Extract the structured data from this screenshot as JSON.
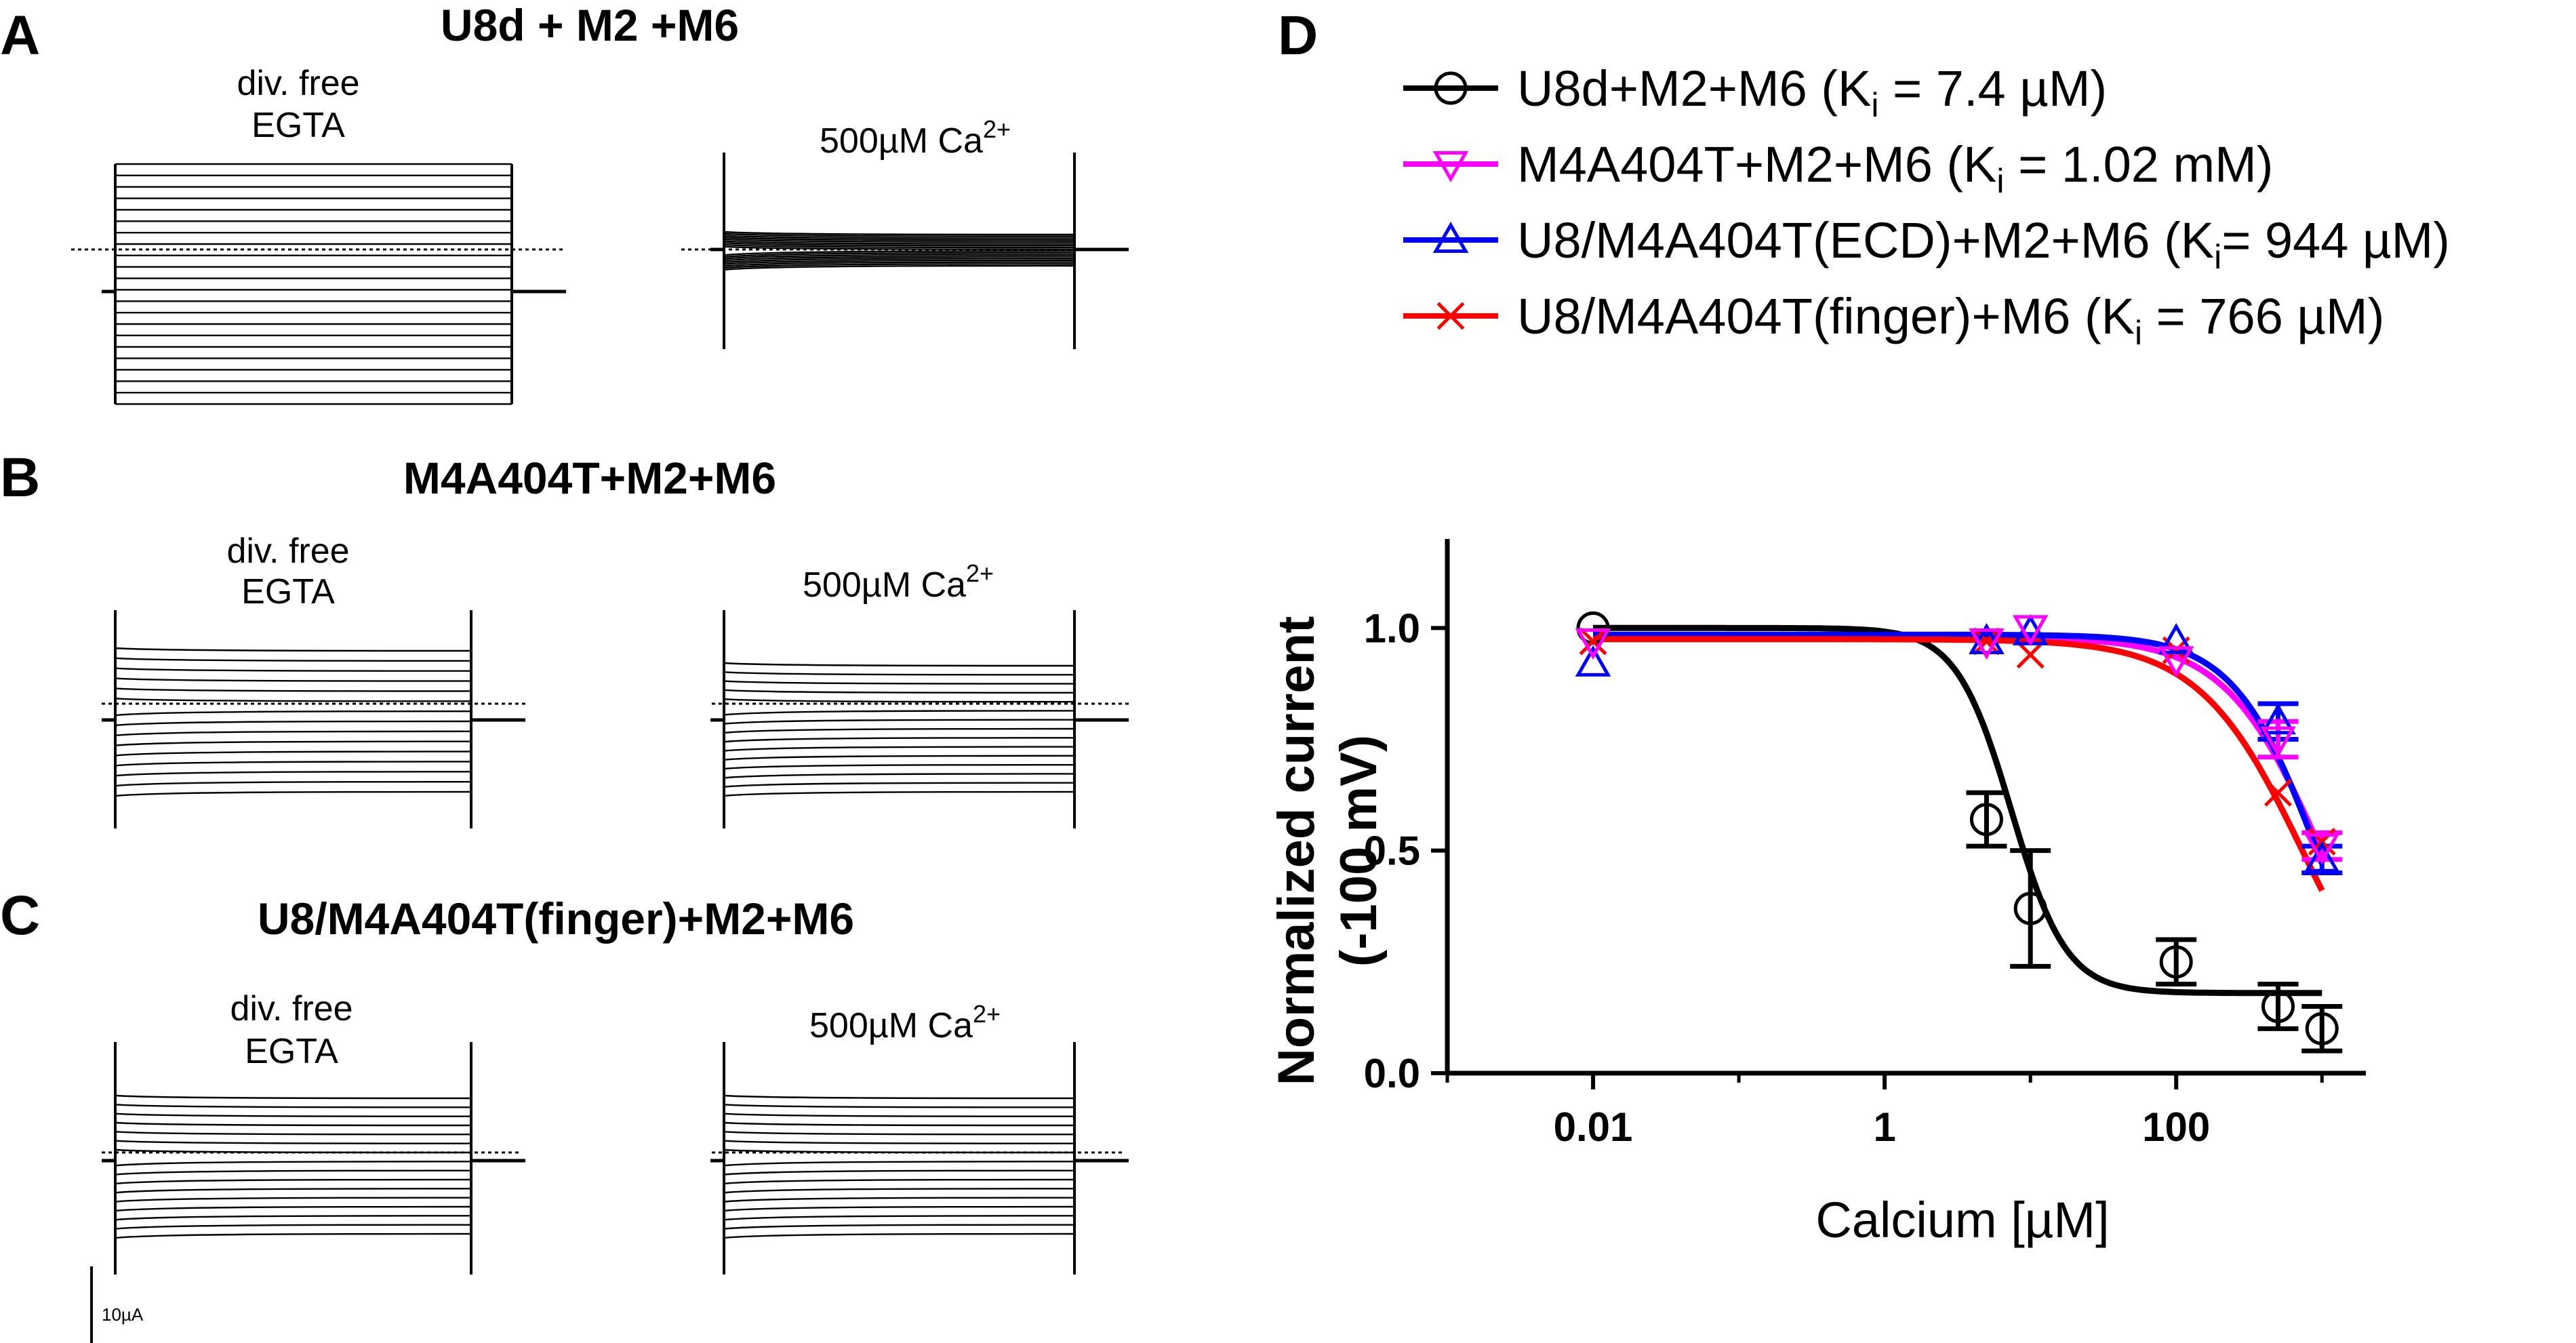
{
  "panels": {
    "A": {
      "letter": "A",
      "title": "U8d + M2 +M6"
    },
    "B": {
      "letter": "B",
      "title": "M4A404T+M2+M6"
    },
    "C": {
      "letter": "C",
      "title": "U8/M4A404T(finger)+M2+M6"
    },
    "D": {
      "letter": "D"
    }
  },
  "conditions": {
    "free_line1": "div. free",
    "free_line2": "EGTA",
    "ca_prefix": "500µM Ca",
    "ca_sup": "2+"
  },
  "scale_bar": {
    "label": "10µA"
  },
  "chart_data": {
    "type": "scatter",
    "xscale": "log",
    "xlabel_prefix": "Calcium [",
    "xlabel_unit": "µM",
    "xlabel_suffix": "]",
    "ylabel_line1": "Normalized current",
    "ylabel_line2": "(-100 mV)",
    "xlim": [
      0.001,
      2000
    ],
    "ylim": [
      0,
      1.2
    ],
    "xticks": [
      {
        "value": 0.01,
        "label": "0.01"
      },
      {
        "value": 1,
        "label": "1"
      },
      {
        "value": 100,
        "label": "100"
      }
    ],
    "yticks": [
      {
        "value": 0.0,
        "label": "0.0"
      },
      {
        "value": 0.5,
        "label": "0.5"
      },
      {
        "value": 1.0,
        "label": "1.0"
      }
    ],
    "legend_position": "top",
    "series": [
      {
        "name": "U8d+M2+M6",
        "ki_value": "7.4 µM",
        "ki_spacing": "spaced",
        "color": "#000000",
        "marker": "circle",
        "points": [
          {
            "x": 0.01,
            "y": 1.0,
            "err": 0
          },
          {
            "x": 5,
            "y": 0.57,
            "err": 0.06
          },
          {
            "x": 10,
            "y": 0.37,
            "err": 0.13
          },
          {
            "x": 100,
            "y": 0.25,
            "err": 0.05
          },
          {
            "x": 500,
            "y": 0.15,
            "err": 0.05
          },
          {
            "x": 1000,
            "y": 0.1,
            "err": 0.05
          }
        ],
        "fit": {
          "top": 1.0,
          "bottom": 0.18,
          "ec50": 7.4,
          "hill": 2.3
        }
      },
      {
        "name": "M4A404T+M2+M6",
        "ki_value": "1.02 mM",
        "ki_spacing": "spaced",
        "color": "#ff00ff",
        "marker": "triangle-down",
        "points": [
          {
            "x": 0.01,
            "y": 0.97,
            "err": 0
          },
          {
            "x": 5,
            "y": 0.97,
            "err": 0
          },
          {
            "x": 10,
            "y": 1.0,
            "err": 0
          },
          {
            "x": 100,
            "y": 0.93,
            "err": 0
          },
          {
            "x": 500,
            "y": 0.75,
            "err": 0.04
          },
          {
            "x": 1000,
            "y": 0.51,
            "err": 0.03
          }
        ],
        "fit": {
          "top": 0.98,
          "bottom": 0.0,
          "ec50": 1020,
          "hill": 1.3
        }
      },
      {
        "name": "U8/M4A404T(ECD)+M2+M6",
        "ki_value": "944 µM",
        "ki_spacing": "tight",
        "color": "#0000ff",
        "marker": "triangle-up",
        "points": [
          {
            "x": 0.01,
            "y": 0.92,
            "err": 0
          },
          {
            "x": 5,
            "y": 0.97,
            "err": 0
          },
          {
            "x": 10,
            "y": 0.99,
            "err": 0
          },
          {
            "x": 100,
            "y": 0.97,
            "err": 0
          },
          {
            "x": 500,
            "y": 0.79,
            "err": 0.04
          },
          {
            "x": 1000,
            "y": 0.48,
            "err": 0.03
          }
        ],
        "fit": {
          "top": 0.985,
          "bottom": 0.0,
          "ec50": 944,
          "hill": 1.5
        }
      },
      {
        "name": "U8/M4A404T(finger)+M6",
        "ki_value": "766 µM",
        "ki_spacing": "spaced",
        "color": "#ff0000",
        "marker": "cross",
        "points": [
          {
            "x": 0.01,
            "y": 0.97,
            "err": 0
          },
          {
            "x": 5,
            "y": 0.97,
            "err": 0
          },
          {
            "x": 10,
            "y": 0.94,
            "err": 0
          },
          {
            "x": 100,
            "y": 0.95,
            "err": 0
          },
          {
            "x": 500,
            "y": 0.63,
            "err": 0
          },
          {
            "x": 1000,
            "y": 0.52,
            "err": 0
          }
        ],
        "fit": {
          "top": 0.975,
          "bottom": 0.0,
          "ec50": 766,
          "hill": 1.2
        }
      }
    ]
  }
}
